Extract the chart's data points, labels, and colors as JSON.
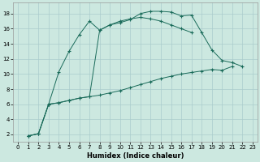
{
  "xlabel": "Humidex (Indice chaleur)",
  "bg_color": "#cce8e0",
  "grid_color": "#aacccc",
  "line_color": "#1a6b5a",
  "xlim": [
    -0.5,
    23.5
  ],
  "ylim": [
    1.0,
    19.5
  ],
  "xticks": [
    0,
    1,
    2,
    3,
    4,
    5,
    6,
    7,
    8,
    9,
    10,
    11,
    12,
    13,
    14,
    15,
    16,
    17,
    18,
    19,
    20,
    21,
    22,
    23
  ],
  "yticks": [
    2,
    4,
    6,
    8,
    10,
    12,
    14,
    16,
    18
  ],
  "curve1_x": [
    1,
    2,
    3,
    4,
    5,
    6,
    7,
    8,
    9,
    10,
    11,
    12,
    13,
    14,
    15,
    16,
    17,
    18
  ],
  "curve1_y": [
    1.8,
    2.1,
    6.0,
    10.3,
    13.0,
    15.2,
    17.0,
    15.8,
    16.5,
    17.0,
    17.3,
    17.5,
    17.3,
    17.0,
    16.5,
    16.0,
    15.5,
    null
  ],
  "curve2_x": [
    1,
    2,
    3,
    4,
    5,
    6,
    7,
    8,
    9,
    10,
    11,
    12,
    13,
    14,
    15,
    16,
    17,
    18,
    19,
    20,
    21,
    22,
    23
  ],
  "curve2_y": [
    1.8,
    2.1,
    6.0,
    6.2,
    6.5,
    6.8,
    7.0,
    15.8,
    16.5,
    16.8,
    17.2,
    18.0,
    18.3,
    18.3,
    18.2,
    17.7,
    17.8,
    15.5,
    13.2,
    11.8,
    11.5,
    11.0,
    null
  ],
  "curve3_x": [
    1,
    2,
    3,
    4,
    5,
    6,
    7,
    8,
    9,
    10,
    11,
    12,
    13,
    14,
    15,
    16,
    17,
    18,
    19,
    20,
    21,
    22,
    23
  ],
  "curve3_y": [
    1.8,
    2.1,
    6.0,
    6.2,
    6.5,
    6.8,
    7.0,
    7.2,
    7.5,
    7.8,
    8.2,
    8.6,
    9.0,
    9.4,
    9.7,
    10.0,
    10.2,
    10.4,
    10.6,
    10.5,
    11.0,
    null,
    null
  ]
}
